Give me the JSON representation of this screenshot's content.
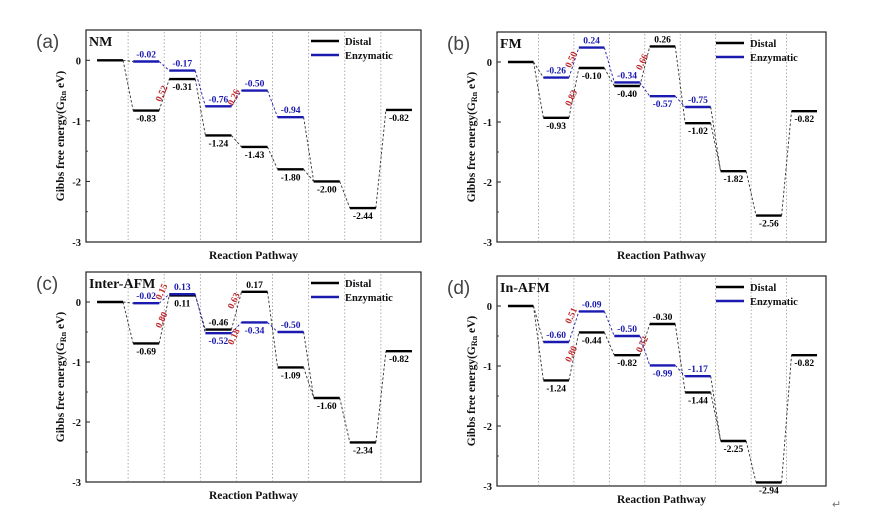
{
  "figure": {
    "corner_mark": "↵"
  },
  "chart_data": [
    {
      "type": "line",
      "panel_label": "(a)",
      "title": "NM",
      "xlabel": "Reaction Pathway",
      "ylabel": "Gibbs free energy(G",
      "ylabel_sub": "Rn",
      "ylabel_tail": " eV)",
      "ylim": [
        -3,
        0.5
      ],
      "yticks": [
        0,
        -1,
        -2,
        -3
      ],
      "n_steps": 9,
      "legend": {
        "position": "top-right",
        "entries": [
          {
            "name": "Distal",
            "color": "#000000"
          },
          {
            "name": "Enzymatic",
            "color": "#1a1ab0"
          }
        ]
      },
      "series": [
        {
          "name": "Distal",
          "color": "#000000",
          "points": [
            {
              "x": 0,
              "y": 0,
              "label": ""
            },
            {
              "x": 1,
              "y": -0.83,
              "label": "-0.83"
            },
            {
              "x": 2,
              "y": -0.31,
              "label": "-0.31"
            },
            {
              "x": 3,
              "y": -1.24,
              "label": "-1.24"
            },
            {
              "x": 4,
              "y": -1.43,
              "label": "-1.43"
            },
            {
              "x": 5,
              "y": -1.8,
              "label": "-1.80"
            },
            {
              "x": 6,
              "y": -2.0,
              "label": "-2.00"
            },
            {
              "x": 7,
              "y": -2.44,
              "label": "-2.44"
            },
            {
              "x": 8,
              "y": -0.82,
              "label": "-0.82"
            }
          ]
        },
        {
          "name": "Enzymatic",
          "color": "#1a1ab0",
          "points": [
            {
              "x": 1,
              "y": -0.02,
              "label": "-0.02"
            },
            {
              "x": 2,
              "y": -0.17,
              "label": "-0.17"
            },
            {
              "x": 3,
              "y": -0.76,
              "label": "-0.76"
            },
            {
              "x": 4,
              "y": -0.5,
              "label": "-0.50"
            },
            {
              "x": 5,
              "y": -0.94,
              "label": "-0.94"
            }
          ]
        }
      ],
      "barriers": [
        {
          "x": 1.5,
          "y": -0.57,
          "label": "0.52"
        },
        {
          "x": 3.5,
          "y": -0.63,
          "label": "0.26"
        }
      ]
    },
    {
      "type": "line",
      "panel_label": "(b)",
      "title": "FM",
      "xlabel": "Reaction Pathway",
      "ylabel": "Gibbs free energy(G",
      "ylabel_sub": "Rn",
      "ylabel_tail": " eV)",
      "ylim": [
        -3,
        0.5
      ],
      "yticks": [
        0,
        -1,
        -2,
        -3
      ],
      "n_steps": 9,
      "legend": {
        "position": "top-right",
        "entries": [
          {
            "name": "Distal",
            "color": "#000000"
          },
          {
            "name": "Enzymatic",
            "color": "#1a1ab0"
          }
        ]
      },
      "series": [
        {
          "name": "Distal",
          "color": "#000000",
          "points": [
            {
              "x": 0,
              "y": 0,
              "label": ""
            },
            {
              "x": 1,
              "y": -0.93,
              "label": "-0.93"
            },
            {
              "x": 2,
              "y": -0.1,
              "label": "-0.10"
            },
            {
              "x": 3,
              "y": -0.4,
              "label": "-0.40"
            },
            {
              "x": 4,
              "y": 0.26,
              "label": "0.26"
            },
            {
              "x": 5,
              "y": -1.02,
              "label": "-1.02"
            },
            {
              "x": 6,
              "y": -1.82,
              "label": "-1.82"
            },
            {
              "x": 7,
              "y": -2.56,
              "label": "-2.56"
            },
            {
              "x": 8,
              "y": -0.82,
              "label": "-0.82"
            }
          ]
        },
        {
          "name": "Enzymatic",
          "color": "#1a1ab0",
          "points": [
            {
              "x": 1,
              "y": -0.26,
              "label": "-0.26"
            },
            {
              "x": 2,
              "y": 0.24,
              "label": "0.24"
            },
            {
              "x": 3,
              "y": -0.34,
              "label": "-0.34"
            },
            {
              "x": 4,
              "y": -0.57,
              "label": "-0.57"
            },
            {
              "x": 5,
              "y": -0.75,
              "label": "-0.75"
            }
          ]
        }
      ],
      "barriers": [
        {
          "x": 1.5,
          "y": 0.02,
          "label": "0.50"
        },
        {
          "x": 1.5,
          "y": -0.62,
          "label": "0.83"
        },
        {
          "x": 3.5,
          "y": -0.02,
          "label": "0.66"
        }
      ]
    },
    {
      "type": "line",
      "panel_label": "(c)",
      "title": "Inter-AFM",
      "xlabel": "Reaction Pathway",
      "ylabel": "Gibbs free energy(G",
      "ylabel_sub": "Rn",
      "ylabel_tail": " eV)",
      "ylim": [
        -3,
        0.5
      ],
      "yticks": [
        0,
        -1,
        -2,
        -3
      ],
      "n_steps": 9,
      "legend": {
        "position": "top-right",
        "entries": [
          {
            "name": "Distal",
            "color": "#000000"
          },
          {
            "name": "Enzymatic",
            "color": "#1a1ab0"
          }
        ]
      },
      "series": [
        {
          "name": "Distal",
          "color": "#000000",
          "points": [
            {
              "x": 0,
              "y": 0,
              "label": ""
            },
            {
              "x": 1,
              "y": -0.69,
              "label": "-0.69"
            },
            {
              "x": 2,
              "y": 0.11,
              "label": "0.11"
            },
            {
              "x": 3,
              "y": -0.46,
              "label": "-0.46"
            },
            {
              "x": 4,
              "y": 0.17,
              "label": "0.17"
            },
            {
              "x": 5,
              "y": -1.09,
              "label": "-1.09"
            },
            {
              "x": 6,
              "y": -1.6,
              "label": "-1.60"
            },
            {
              "x": 7,
              "y": -2.34,
              "label": "-2.34"
            },
            {
              "x": 8,
              "y": -0.82,
              "label": "-0.82"
            }
          ]
        },
        {
          "name": "Enzymatic",
          "color": "#1a1ab0",
          "points": [
            {
              "x": 1,
              "y": -0.02,
              "label": "-0.02"
            },
            {
              "x": 2,
              "y": 0.13,
              "label": "0.13"
            },
            {
              "x": 3,
              "y": -0.52,
              "label": "-0.52"
            },
            {
              "x": 4,
              "y": -0.34,
              "label": "-0.34"
            },
            {
              "x": 5,
              "y": -0.5,
              "label": "-0.50"
            }
          ]
        }
      ],
      "barriers": [
        {
          "x": 1.5,
          "y": 0.15,
          "label": "0.15"
        },
        {
          "x": 1.5,
          "y": -0.32,
          "label": "0.80"
        },
        {
          "x": 3.5,
          "y": 0.0,
          "label": "0.63"
        },
        {
          "x": 3.5,
          "y": -0.6,
          "label": "0.18"
        }
      ]
    },
    {
      "type": "line",
      "panel_label": "(d)",
      "title": "In-AFM",
      "xlabel": "Reaction Pathway",
      "ylabel": "Gibbs free energy(G",
      "ylabel_sub": "Rn",
      "ylabel_tail": " eV)",
      "ylim": [
        -3,
        0.5
      ],
      "yticks": [
        0,
        -1,
        -2,
        -3
      ],
      "n_steps": 9,
      "legend": {
        "position": "top-right",
        "entries": [
          {
            "name": "Distal",
            "color": "#000000"
          },
          {
            "name": "Enzymatic",
            "color": "#1a1ab0"
          }
        ]
      },
      "series": [
        {
          "name": "Distal",
          "color": "#000000",
          "points": [
            {
              "x": 0,
              "y": 0,
              "label": ""
            },
            {
              "x": 1,
              "y": -1.24,
              "label": "-1.24"
            },
            {
              "x": 2,
              "y": -0.44,
              "label": "-0.44"
            },
            {
              "x": 3,
              "y": -0.82,
              "label": "-0.82"
            },
            {
              "x": 4,
              "y": -0.3,
              "label": "-0.30"
            },
            {
              "x": 5,
              "y": -1.44,
              "label": "-1.44"
            },
            {
              "x": 6,
              "y": -2.25,
              "label": "-2.25"
            },
            {
              "x": 7,
              "y": -2.94,
              "label": "-2.94"
            },
            {
              "x": 8,
              "y": -0.82,
              "label": "-0.82"
            }
          ]
        },
        {
          "name": "Enzymatic",
          "color": "#1a1ab0",
          "points": [
            {
              "x": 1,
              "y": -0.6,
              "label": "-0.60"
            },
            {
              "x": 2,
              "y": -0.09,
              "label": "-0.09"
            },
            {
              "x": 3,
              "y": -0.5,
              "label": "-0.50"
            },
            {
              "x": 4,
              "y": -0.99,
              "label": "-0.99"
            },
            {
              "x": 5,
              "y": -1.17,
              "label": "-1.17"
            }
          ]
        }
      ],
      "barriers": [
        {
          "x": 1.5,
          "y": -0.18,
          "label": "0.51"
        },
        {
          "x": 1.5,
          "y": -0.82,
          "label": "0.80"
        },
        {
          "x": 3.5,
          "y": -0.66,
          "label": "0.52"
        }
      ]
    }
  ]
}
